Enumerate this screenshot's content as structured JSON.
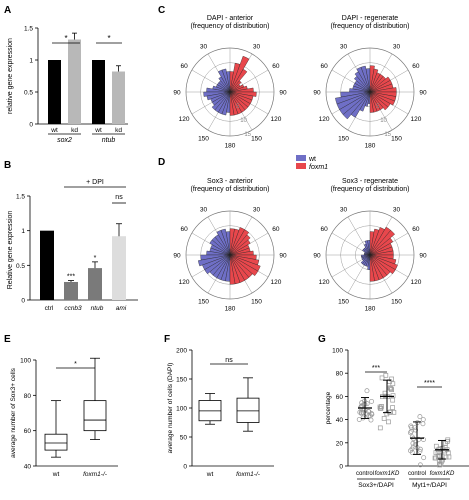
{
  "colors": {
    "blue": "#6f6fc6",
    "red": "#e8474c",
    "black": "#000000",
    "gray": "#b8b8b8",
    "darkgray": "#7a7a7a",
    "lightgray": "#dddddd",
    "box_gray": "#a9a9a9"
  },
  "chart_data": [
    {
      "panel": "A",
      "type": "bar",
      "ylabel": "relative gene expression",
      "ylim": [
        0,
        1.5
      ],
      "yticks": [
        "0",
        "0.5",
        "1",
        "1.5"
      ],
      "group_labels": [
        "sox2",
        "ntub"
      ],
      "bar_labels": [
        "wt",
        "kd",
        "wt",
        "kd"
      ],
      "values": [
        1.0,
        1.32,
        1.0,
        0.82
      ],
      "errors": [
        0,
        0.1,
        0,
        0.09
      ],
      "significance": [
        "*",
        "*"
      ]
    },
    {
      "panel": "B",
      "type": "bar",
      "ylabel": "Relative gene expression",
      "ylim": [
        0,
        1.5
      ],
      "yticks": [
        "0",
        "0.5",
        "1",
        "1.5"
      ],
      "categories": [
        "ctrl",
        "ccnb3",
        "ntub",
        "ami"
      ],
      "values": [
        1.0,
        0.26,
        0.46,
        0.92
      ],
      "errors": [
        0,
        0.02,
        0.09,
        0.18
      ],
      "treatment_label": "+ DPI",
      "significance": [
        "",
        "***",
        "*",
        "ns"
      ]
    },
    {
      "panel": "C",
      "type": "polar-histogram",
      "plots": [
        {
          "title": "DAPI - anterior",
          "subtitle": "(frequency of distribution)",
          "wt": [
            7,
            8,
            8,
            6,
            5,
            5,
            5,
            6,
            8,
            9,
            8,
            7,
            7,
            8,
            8,
            8,
            8,
            7
          ],
          "foxm1": [
            7,
            10,
            13,
            9,
            5,
            4,
            5,
            6,
            8,
            9,
            8,
            8,
            8,
            8,
            8,
            8,
            8,
            8
          ]
        },
        {
          "title": "DAPI - regenerate",
          "subtitle": "(frequency of distribution)",
          "wt": [
            8,
            9,
            9,
            8,
            7,
            6,
            6,
            6,
            7,
            10,
            12,
            12,
            12,
            12,
            10,
            7,
            5,
            4
          ],
          "foxm1": [
            9,
            8,
            7,
            7,
            7,
            8,
            8,
            8,
            9,
            9,
            9,
            9,
            8,
            8,
            7,
            7,
            7,
            7
          ]
        }
      ],
      "angle_ticks": [
        "30",
        "60",
        "90",
        "120",
        "150",
        "180",
        "150",
        "120",
        "90",
        "60",
        "30"
      ],
      "radial_ticks": [
        "5",
        "10",
        "15"
      ]
    },
    {
      "panel": "D",
      "type": "polar-histogram",
      "legend": [
        "wt",
        "foxm1"
      ],
      "plots": [
        {
          "title": "Sox3 - anterior",
          "subtitle": "(frequency of distribution)",
          "wt": [
            8,
            9,
            9,
            8,
            8,
            8,
            7,
            7,
            8,
            10,
            11,
            10,
            10,
            9,
            9,
            9,
            9,
            9
          ],
          "foxm1": [
            9,
            9,
            10,
            10,
            9,
            8,
            7,
            7,
            8,
            9,
            10,
            11,
            11,
            10,
            10,
            10,
            10,
            10
          ]
        },
        {
          "title": "Sox3 - regenerate",
          "subtitle": "(frequency of distribution)",
          "wt": [
            5,
            5,
            4,
            3,
            3,
            3,
            2,
            2,
            2,
            3,
            3,
            3,
            3,
            4,
            4,
            4,
            4,
            5
          ],
          "foxm1": [
            8,
            9,
            10,
            11,
            11,
            9,
            8,
            8,
            8,
            8,
            9,
            10,
            10,
            9,
            9,
            9,
            9,
            9
          ]
        }
      ],
      "angle_ticks": [
        "30",
        "60",
        "90",
        "120",
        "150",
        "180",
        "150",
        "120",
        "90",
        "60",
        "30"
      ]
    },
    {
      "panel": "E",
      "type": "box",
      "ylabel": "average number of Sox3+ cells",
      "ylim": [
        40,
        100
      ],
      "yticks": [
        "40",
        "60",
        "80",
        "100"
      ],
      "categories": [
        "wt",
        "foxm1-/-"
      ],
      "boxes": [
        {
          "min": 45,
          "q1": 49,
          "median": 53,
          "q3": 58,
          "max": 77
        },
        {
          "min": 55,
          "q1": 60,
          "median": 66,
          "q3": 77,
          "max": 101
        }
      ],
      "significance": "*"
    },
    {
      "panel": "F",
      "type": "box",
      "ylabel": "average number of cells (DAPI)",
      "ylim": [
        0,
        200
      ],
      "yticks": [
        "0",
        "50",
        "100",
        "150",
        "200"
      ],
      "categories": [
        "wt",
        "foxm1-/-"
      ],
      "boxes": [
        {
          "min": 72,
          "q1": 78,
          "median": 95,
          "q3": 113,
          "max": 125
        },
        {
          "min": 60,
          "q1": 75,
          "median": 95,
          "q3": 117,
          "max": 152
        }
      ],
      "significance": "ns"
    },
    {
      "panel": "G",
      "type": "scatter",
      "ylabel": "percentage",
      "ylim": [
        0,
        100
      ],
      "yticks": [
        "0",
        "20",
        "40",
        "60",
        "80",
        "100"
      ],
      "categories": [
        "control",
        "foxm1KD",
        "control",
        "foxm1KD"
      ],
      "group_labels": [
        "Sox3+/DAPI",
        "Myt1+/DAPI"
      ],
      "means": [
        50,
        60,
        24,
        14
      ],
      "sd": [
        9,
        14,
        14,
        8
      ],
      "significance": [
        "***",
        "****"
      ]
    }
  ],
  "panel_letters": [
    "A",
    "B",
    "C",
    "D",
    "E",
    "F",
    "G"
  ]
}
